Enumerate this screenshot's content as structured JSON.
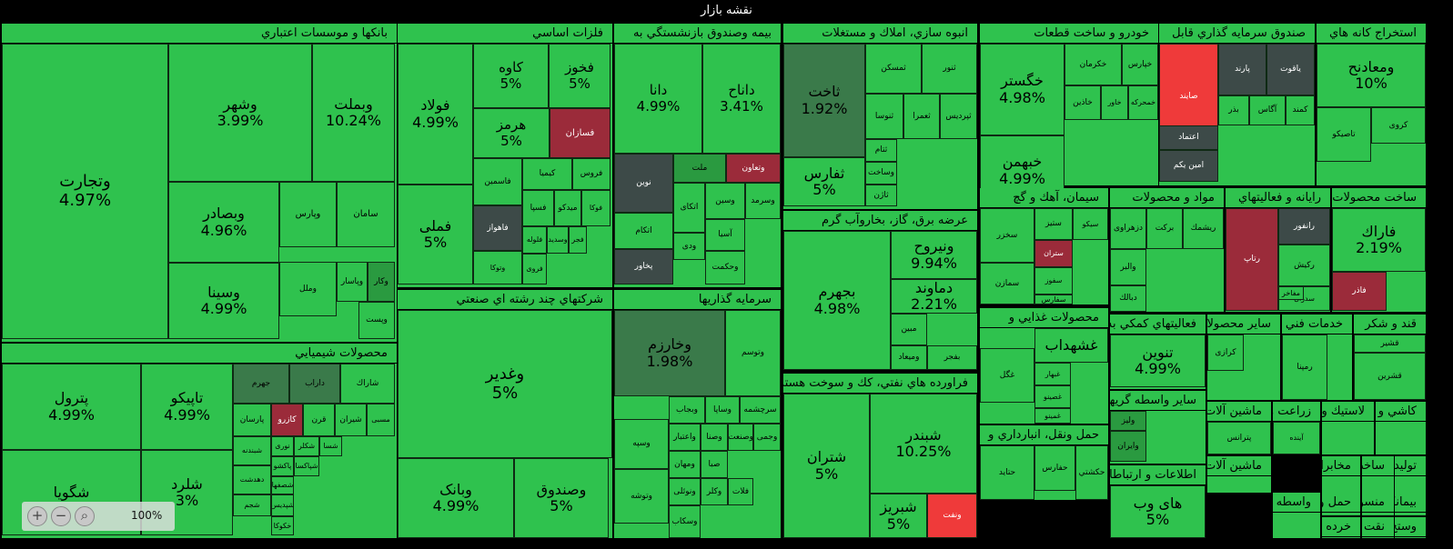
{
  "page": {
    "title": "نقشه بازار",
    "zoom_level": "100%"
  },
  "colors": {
    "strong_green": "#2fc24e",
    "mid_green": "#2a9a40",
    "dark_green": "#3a7a4a",
    "dark_gray": "#3d4a48",
    "red": "#ef3a3a",
    "dark_red": "#9b2b3a"
  },
  "zoom_controls": [
    {
      "name": "zoom-in-icon",
      "glyph": "+"
    },
    {
      "name": "zoom-out-icon",
      "glyph": "−"
    },
    {
      "name": "zoom-reset-icon",
      "glyph": "⌕"
    }
  ],
  "chart_data": {
    "type": "treemap",
    "title": "نقشه بازار",
    "sectors": [
      {
        "name": "بانكها و موسسات اعتباري",
        "items": [
          {
            "symbol": "وتجارت",
            "change": "4.97%"
          },
          {
            "symbol": "وشهر",
            "change": "3.99%"
          },
          {
            "symbol": "وبملت",
            "change": "10.24%"
          },
          {
            "symbol": "وبصادر",
            "change": "4.96%"
          },
          {
            "symbol": "وسينا",
            "change": "4.99%"
          },
          {
            "symbol": "وپارس"
          },
          {
            "symbol": "سامان"
          },
          {
            "symbol": "وپاسار"
          },
          {
            "symbol": "وكار"
          },
          {
            "symbol": "وملل"
          },
          {
            "symbol": "وپست"
          }
        ]
      },
      {
        "name": "فلزات اساسي",
        "items": [
          {
            "symbol": "فولاد",
            "change": "4.99%"
          },
          {
            "symbol": "فملی",
            "change": "5%"
          },
          {
            "symbol": "كاوه",
            "change": "5%"
          },
          {
            "symbol": "فخوز",
            "change": "5%"
          },
          {
            "symbol": "هرمز",
            "change": "5%"
          },
          {
            "symbol": "فسازان"
          },
          {
            "symbol": "كيميا"
          },
          {
            "symbol": "فروس"
          },
          {
            "symbol": "فاسمين"
          },
          {
            "symbol": "فسپا"
          },
          {
            "symbol": "ميدكو"
          },
          {
            "symbol": "فوكا"
          },
          {
            "symbol": "فاهواز"
          },
          {
            "symbol": "فلوله"
          },
          {
            "symbol": "وسديد"
          },
          {
            "symbol": "فجر"
          },
          {
            "symbol": "وتوكا"
          },
          {
            "symbol": "فروی"
          }
        ]
      },
      {
        "name": "بيمه وصندوق بازنشستگي به",
        "items": [
          {
            "symbol": "دانا",
            "change": "4.99%"
          },
          {
            "symbol": "داناح",
            "change": "3.41%"
          },
          {
            "symbol": "نوين"
          },
          {
            "symbol": "ملت"
          },
          {
            "symbol": "وتعاون"
          },
          {
            "symbol": "اتكام"
          },
          {
            "symbol": "اتكای"
          },
          {
            "symbol": "وسين"
          },
          {
            "symbol": "وسرمد"
          },
          {
            "symbol": "پخاور"
          },
          {
            "symbol": "آسيا"
          },
          {
            "symbol": "ودی"
          },
          {
            "symbol": "وحكمت"
          }
        ]
      },
      {
        "name": "انبوه سازي، املاك و مستغلات",
        "items": [
          {
            "symbol": "ثاخت",
            "change": "1.92%"
          },
          {
            "symbol": "ثفارس",
            "change": "5%"
          },
          {
            "symbol": "ثمسكن"
          },
          {
            "symbol": "ثنور"
          },
          {
            "symbol": "ثنوسا"
          },
          {
            "symbol": "ثعمرا"
          },
          {
            "symbol": "ثپرديس"
          },
          {
            "symbol": "ثتام"
          },
          {
            "symbol": "وساخت"
          },
          {
            "symbol": "ثاژن"
          }
        ]
      },
      {
        "name": "خودرو و ساخت قطعات",
        "items": [
          {
            "symbol": "خگستر",
            "change": "4.98%"
          },
          {
            "symbol": "خبهمن",
            "change": "4.99%"
          },
          {
            "symbol": "خكرمان"
          },
          {
            "symbol": "خپارس"
          },
          {
            "symbol": "خاذين"
          },
          {
            "symbol": "خاور"
          },
          {
            "symbol": "خمحركه"
          }
        ]
      },
      {
        "name": "صندوق سرمايه گذاري قابل",
        "items": [
          {
            "symbol": "صايند"
          },
          {
            "symbol": "پارند"
          },
          {
            "symbol": "ياقوت"
          },
          {
            "symbol": "بذر"
          },
          {
            "symbol": "آگاس"
          },
          {
            "symbol": "كمند"
          },
          {
            "symbol": "امين يكم"
          },
          {
            "symbol": "اعتماد"
          }
        ]
      },
      {
        "name": "استخراج كانه هاي",
        "items": [
          {
            "symbol": "ومعادنح",
            "change": "10%"
          },
          {
            "symbol": "كروی"
          },
          {
            "symbol": "تاصيكو"
          }
        ]
      },
      {
        "name": "عرضه برق، گاز، بخاروآب گرم",
        "items": [
          {
            "symbol": "بجهرم",
            "change": "4.98%"
          },
          {
            "symbol": "ونيروح",
            "change": "9.94%"
          },
          {
            "symbol": "دماوند",
            "change": "2.21%"
          },
          {
            "symbol": "مبين"
          },
          {
            "symbol": "وميعاد"
          },
          {
            "symbol": "بفجر"
          }
        ]
      },
      {
        "name": "سيمان، آهك و گچ",
        "items": [
          {
            "symbol": "سخزر"
          },
          {
            "symbol": "ستيز"
          },
          {
            "symbol": "سيكو"
          },
          {
            "symbol": "ستران"
          },
          {
            "symbol": "سفوز"
          },
          {
            "symbol": "سمازن"
          },
          {
            "symbol": "سفارس"
          }
        ]
      },
      {
        "name": "مواد و محصولات",
        "items": [
          {
            "symbol": "دزهراوی"
          },
          {
            "symbol": "بركت"
          },
          {
            "symbol": "ريشمك"
          },
          {
            "symbol": "والبر"
          },
          {
            "symbol": "دبالك"
          }
        ]
      },
      {
        "name": "رايانه و فعاليتهاي",
        "items": [
          {
            "symbol": "رتاپ"
          },
          {
            "symbol": "رانفور"
          },
          {
            "symbol": "ركيش"
          },
          {
            "symbol": "سدران"
          },
          {
            "symbol": "مفاخر"
          }
        ]
      },
      {
        "name": "ساخت محصولات",
        "items": [
          {
            "symbol": "فاراك",
            "change": "2.19%"
          },
          {
            "symbol": "فاذر"
          }
        ]
      },
      {
        "name": "محصولات شيميايي",
        "items": [
          {
            "symbol": "پترول",
            "change": "4.99%"
          },
          {
            "symbol": "تاپيكو",
            "change": "4.99%"
          },
          {
            "symbol": "شگويا"
          },
          {
            "symbol": "شلرد",
            "change": "3%"
          },
          {
            "symbol": "جهرم"
          },
          {
            "symbol": "داراب"
          },
          {
            "symbol": "شاراك"
          },
          {
            "symbol": "پارسان"
          },
          {
            "symbol": "كازرو"
          },
          {
            "symbol": "قرن"
          },
          {
            "symbol": "شيران"
          },
          {
            "symbol": "مسبی"
          },
          {
            "symbol": "شبندنه"
          },
          {
            "symbol": "نوری"
          },
          {
            "symbol": "شكلر"
          },
          {
            "symbol": "شسا"
          },
          {
            "symbol": "دهدشت"
          },
          {
            "symbol": "پاكشو"
          },
          {
            "symbol": "شپاكسا"
          },
          {
            "symbol": "شصفها"
          },
          {
            "symbol": "شجم"
          },
          {
            "symbol": "شپديس"
          },
          {
            "symbol": "خكوكا"
          }
        ]
      },
      {
        "name": "شركتهاي چند رشته اي صنعتي",
        "items": [
          {
            "symbol": "وغدير",
            "change": "5%"
          },
          {
            "symbol": "وبانک",
            "change": "4.99%"
          },
          {
            "symbol": "وصندوق",
            "change": "5%"
          }
        ]
      },
      {
        "name": "سرمايه گذاريها",
        "items": [
          {
            "symbol": "وخارزم",
            "change": "1.98%"
          },
          {
            "symbol": "وتوسم"
          },
          {
            "symbol": "وبجاب"
          },
          {
            "symbol": "وساپا"
          },
          {
            "symbol": "سرچشمه"
          },
          {
            "symbol": "وسپه"
          },
          {
            "symbol": "واعتبار"
          },
          {
            "symbol": "وصنا"
          },
          {
            "symbol": "وصنعت"
          },
          {
            "symbol": "وجمی"
          },
          {
            "symbol": "ومهان"
          },
          {
            "symbol": "صبا"
          },
          {
            "symbol": "وتوشه"
          },
          {
            "symbol": "ونوئلی"
          },
          {
            "symbol": "وسكاب"
          },
          {
            "symbol": "وكلر"
          },
          {
            "symbol": "فلات"
          }
        ]
      },
      {
        "name": "فراورده هاي نفتي، كك و سوخت هسته",
        "items": [
          {
            "symbol": "شتران",
            "change": "5%"
          },
          {
            "symbol": "شبندر",
            "change": "10.25%"
          },
          {
            "symbol": "شبريز",
            "change": "5%"
          },
          {
            "symbol": "ونفت"
          }
        ]
      },
      {
        "name": "محصولات غذايي و",
        "items": [
          {
            "symbol": "غشهداب"
          },
          {
            "symbol": "غگل"
          },
          {
            "symbol": "غبهار"
          },
          {
            "symbol": "غصينو"
          },
          {
            "symbol": "غمينو"
          }
        ]
      },
      {
        "name": "حمل ونقل، انبارداري و",
        "items": [
          {
            "symbol": "حتايد"
          },
          {
            "symbol": "حفارس"
          },
          {
            "symbol": "حكشتي"
          }
        ]
      },
      {
        "name": "فعاليتهاي كمكي به",
        "items": [
          {
            "symbol": "تنوين",
            "change": "4.99%"
          }
        ]
      },
      {
        "name": "ساير محصولات",
        "items": [
          {
            "symbol": "كرازی"
          }
        ]
      },
      {
        "name": "خدمات فني و",
        "items": [
          {
            "symbol": "رمپنا"
          }
        ]
      },
      {
        "name": "قند و شكر",
        "items": [
          {
            "symbol": "قشير"
          },
          {
            "symbol": "قشرين"
          }
        ]
      },
      {
        "name": "ساير واسطه گريهاي",
        "items": [
          {
            "symbol": "ولیز"
          },
          {
            "symbol": "وايران"
          }
        ]
      },
      {
        "name": "ماشين آلات و",
        "items": [
          {
            "symbol": "پترانس"
          }
        ]
      },
      {
        "name": "زراعت و",
        "items": [
          {
            "symbol": "آينده"
          }
        ]
      },
      {
        "name": "لاستيك و",
        "items": []
      },
      {
        "name": "كاشي و",
        "items": []
      },
      {
        "name": "ماشين آلات و",
        "items": []
      },
      {
        "name": "مخابرات",
        "items": []
      },
      {
        "name": "ساخت",
        "items": []
      },
      {
        "name": "توليد",
        "items": []
      },
      {
        "name": "اطلاعات و ارتباطات",
        "items": [
          {
            "symbol": "های وب",
            "change": "5%"
          }
        ]
      },
      {
        "name": "واسطه گر",
        "items": []
      },
      {
        "name": "حمل و",
        "items": []
      },
      {
        "name": "منسو",
        "items": []
      },
      {
        "name": "بيمانكاري",
        "items": []
      },
      {
        "name": "خرده",
        "items": []
      },
      {
        "name": "نقت",
        "items": []
      },
      {
        "name": "وستخ",
        "items": []
      }
    ]
  }
}
